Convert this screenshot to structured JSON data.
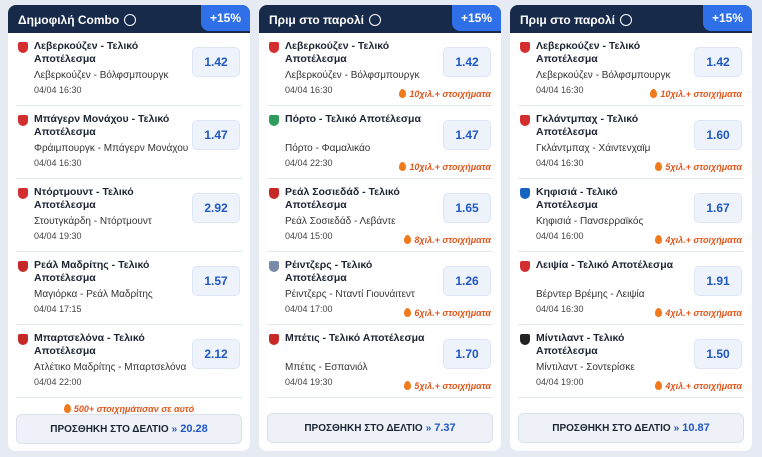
{
  "cards": [
    {
      "title": "Δημοφιλή Combo",
      "boost": "+15%",
      "items": [
        {
          "market": "Λεβερκούζεν - Τελικό Αποτέλεσμα",
          "match": "Λεβερκούζεν - Βόλφσμπουργκ",
          "time": "04/04 16:30",
          "odds": "1.42",
          "color": "#d32f2f"
        },
        {
          "market": "Μπάγερν Μονάχου - Τελικό Αποτέλεσμα",
          "match": "Φράιμπουργκ - Μπάγερν Μονάχου",
          "time": "04/04 16:30",
          "odds": "1.47",
          "color": "#d32f2f"
        },
        {
          "market": "Ντόρτμουντ - Τελικό Αποτέλεσμα",
          "match": "Στουτγκάρδη - Ντόρτμουντ",
          "time": "04/04 19:30",
          "odds": "2.92",
          "color": "#d32f2f"
        },
        {
          "market": "Ρεάλ Μαδρίτης - Τελικό Αποτέλεσμα",
          "match": "Μαγιόρκα - Ρεάλ Μαδρίτης",
          "time": "04/04 17:15",
          "odds": "1.57",
          "color": "#c62828"
        },
        {
          "market": "Μπαρτσελόνα - Τελικό Αποτέλεσμα",
          "match": "Ατλέτικο Μαδρίτης - Μπαρτσελόνα",
          "time": "04/04 22:00",
          "odds": "2.12",
          "color": "#c62828"
        }
      ],
      "note": "500+ στοιχημάτισαν σε αυτό",
      "button": "ΠΡΟΣΘΗΚΗ ΣΤΟ ΔΕΛΤΙΟ",
      "total": "20.28"
    },
    {
      "title": "Πριμ στο παρολί",
      "boost": "+15%",
      "items": [
        {
          "market": "Λεβερκούζεν - Τελικό Αποτέλεσμα",
          "match": "Λεβερκούζεν - Βόλφσμπουργκ",
          "time": "04/04 16:30",
          "odds": "1.42",
          "hot": "10χιλ.+ στοιχήματα",
          "color": "#d32f2f"
        },
        {
          "market": "Πόρτο - Τελικό Αποτέλεσμα",
          "match": "Πόρτο - Φαμαλικάο",
          "time": "04/04 22:30",
          "odds": "1.47",
          "hot": "10χιλ.+ στοιχήματα",
          "color": "#2e9d5b"
        },
        {
          "market": "Ρεάλ Σοσιεδάδ - Τελικό Αποτέλεσμα",
          "match": "Ρεάλ Σοσιεδάδ - Λεβάντε",
          "time": "04/04 15:00",
          "odds": "1.65",
          "hot": "8χιλ.+ στοιχήματα",
          "color": "#c62828"
        },
        {
          "market": "Ρέιντζερς - Τελικό Αποτέλεσμα",
          "match": "Ρέιντζερς - Νταντί Γιουνάιτεντ",
          "time": "04/04 17:00",
          "odds": "1.26",
          "hot": "6χιλ.+ στοιχήματα",
          "color": "#7a8aa8"
        },
        {
          "market": "Μπέτις - Τελικό Αποτέλεσμα",
          "match": "Μπέτις - Εσπανιόλ",
          "time": "04/04 19:30",
          "odds": "1.70",
          "hot": "5χιλ.+ στοιχήματα",
          "color": "#c62828"
        }
      ],
      "button": "ΠΡΟΣΘΗΚΗ ΣΤΟ ΔΕΛΤΙΟ",
      "total": "7.37"
    },
    {
      "title": "Πριμ στο παρολί",
      "boost": "+15%",
      "items": [
        {
          "market": "Λεβερκούζεν - Τελικό Αποτέλεσμα",
          "match": "Λεβερκούζεν - Βόλφσμπουργκ",
          "time": "04/04 16:30",
          "odds": "1.42",
          "hot": "10χιλ.+ στοιχήματα",
          "color": "#d32f2f"
        },
        {
          "market": "Γκλάντμπαχ - Τελικό Αποτέλεσμα",
          "match": "Γκλάντμπαχ - Χάιντενχαϊμ",
          "time": "04/04 16:30",
          "odds": "1.60",
          "hot": "5χιλ.+ στοιχήματα",
          "color": "#d32f2f"
        },
        {
          "market": "Κηφισιά - Τελικό Αποτέλεσμα",
          "match": "Κηφισιά - Πανσερραϊκός",
          "time": "04/04 16:00",
          "odds": "1.67",
          "hot": "4χιλ.+ στοιχήματα",
          "color": "#1565c0"
        },
        {
          "market": "Λειψία - Τελικό Αποτέλεσμα",
          "match": "Βέρντερ Βρέμης - Λειψία",
          "time": "04/04 16:30",
          "odds": "1.91",
          "hot": "4χιλ.+ στοιχήματα",
          "color": "#d32f2f"
        },
        {
          "market": "Μίντιλαντ - Τελικό Αποτέλεσμα",
          "match": "Μίντιλαντ - Σοντερίσκε",
          "time": "04/04 19:00",
          "odds": "1.50",
          "hot": "4χιλ.+ στοιχήματα",
          "color": "#222222"
        }
      ],
      "button": "ΠΡΟΣΘΗΚΗ ΣΤΟ ΔΕΛΤΙΟ",
      "total": "10.87"
    }
  ]
}
